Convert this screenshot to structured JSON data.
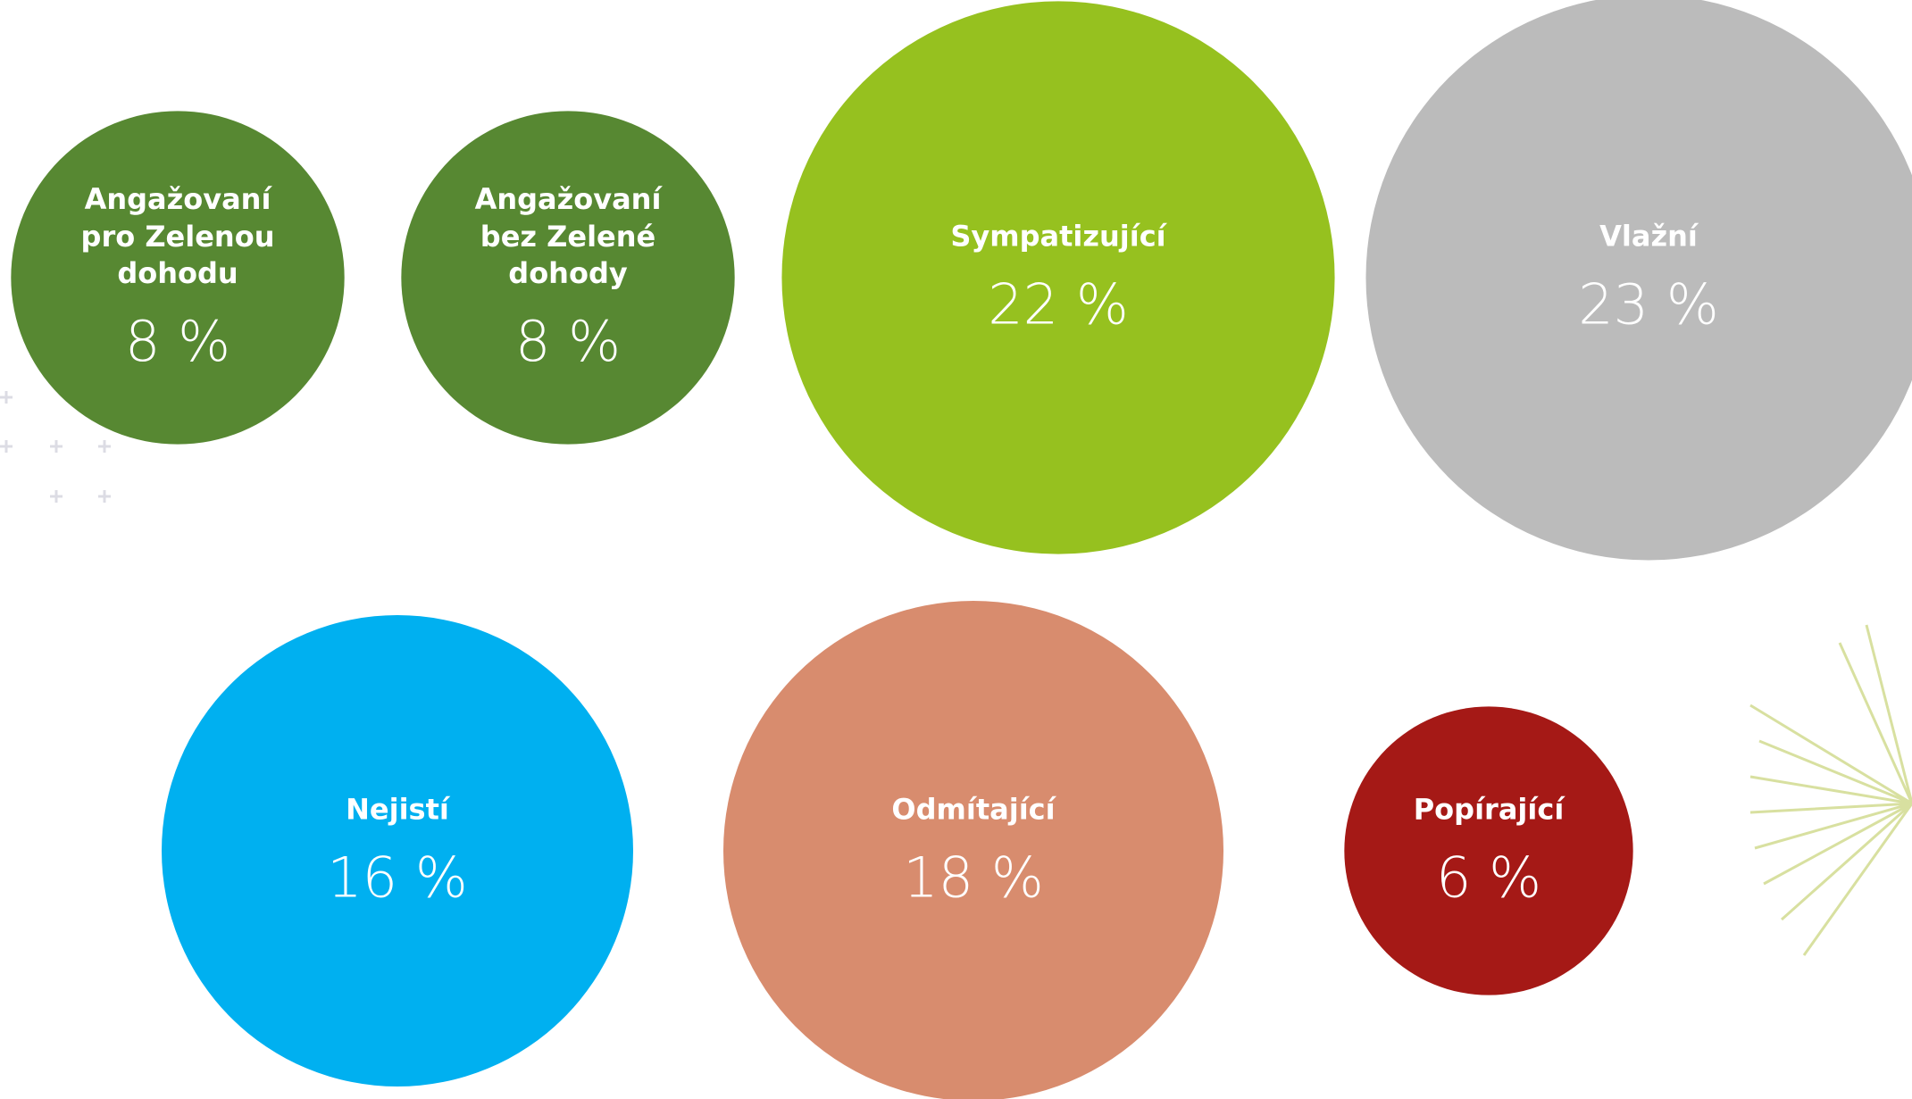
{
  "chart_data": {
    "type": "bubble",
    "categories": [
      "Angažovaní pro Zelenou dohodu",
      "Angažovaní bez Zelené dohody",
      "Sympatizující",
      "Vlažní",
      "Nejistí",
      "Odmítající",
      "Popírající"
    ],
    "values": [
      8,
      8,
      22,
      23,
      16,
      18,
      6
    ],
    "value_labels": [
      "8 %",
      "8 %",
      "22 %",
      "23 %",
      "16 %",
      "18 %",
      "6 %"
    ],
    "colors": [
      "#578832",
      "#578832",
      "#96c11f",
      "#bbbbbb",
      "#00b0f0",
      "#d88c6e",
      "#a51916"
    ]
  }
}
